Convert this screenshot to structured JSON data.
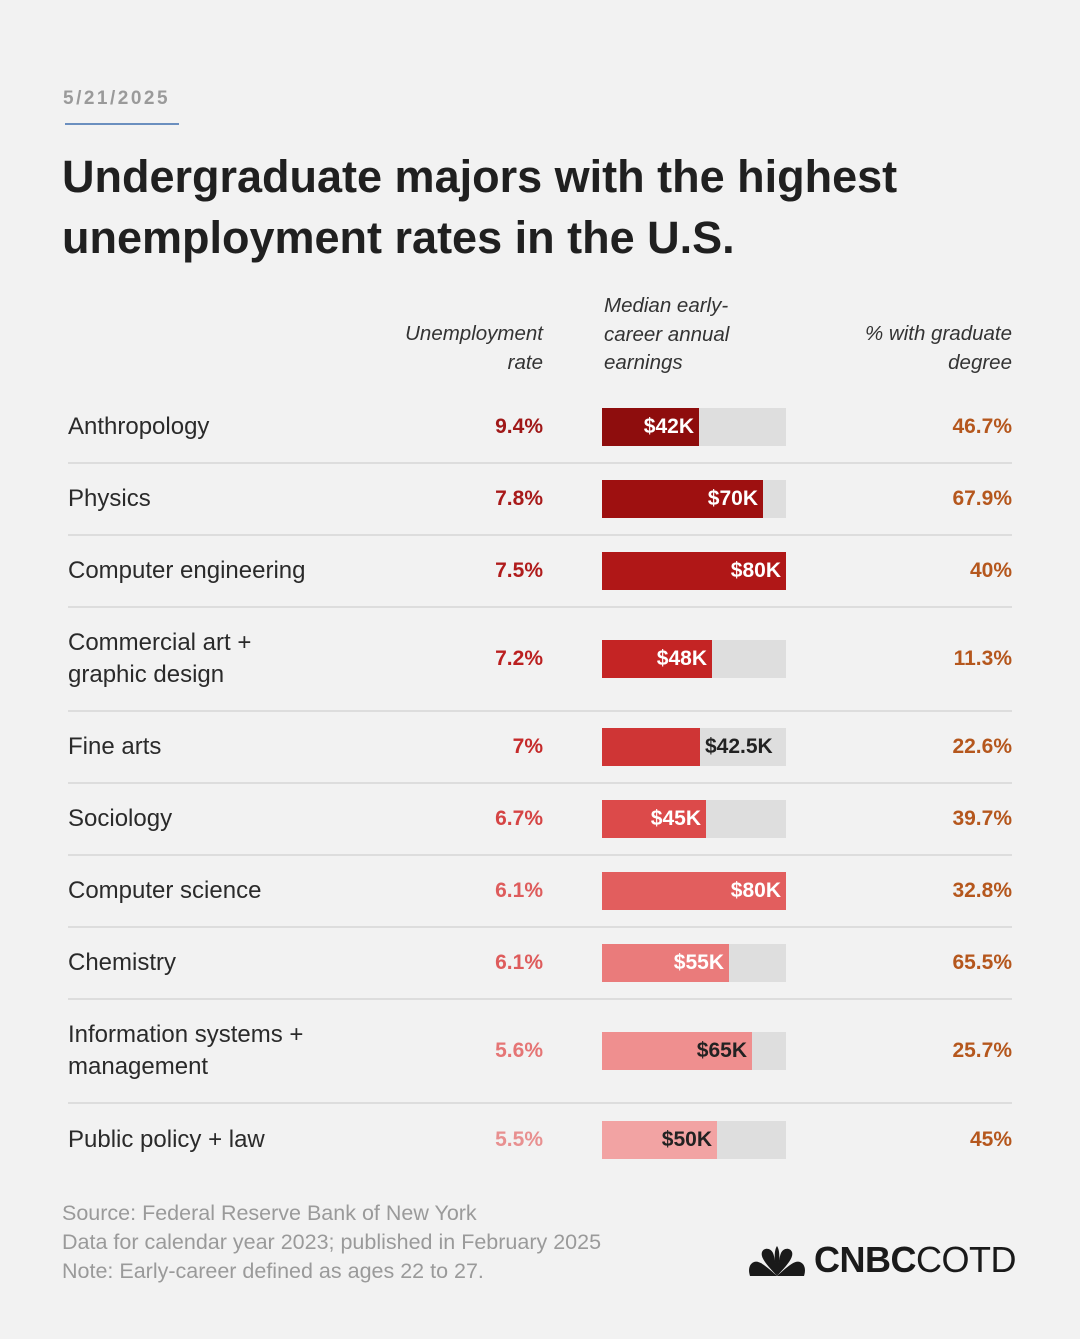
{
  "header": {
    "date": "5/21/2025",
    "title": "Undergraduate majors with the highest unemployment rates in the U.S."
  },
  "columns": {
    "unemployment": [
      "Unemployment",
      "rate"
    ],
    "earnings": [
      "Median early-",
      "career annual",
      "earnings"
    ],
    "graduate": [
      "% with graduate",
      "degree"
    ]
  },
  "chart_data": {
    "type": "table",
    "title": "Undergraduate majors with the highest unemployment rates in the U.S.",
    "columns": [
      "Unemployment rate",
      "Median early-career annual earnings",
      "% with graduate degree"
    ],
    "earnings_scale_max": 80000,
    "rows": [
      {
        "major": [
          "Anthropology"
        ],
        "unemployment": "9.4%",
        "earnings_label": "$42K",
        "earnings_value": 42000,
        "graduate": "46.7%",
        "color": "#8e0d0d",
        "unemp_color": "#a01818",
        "label_inside": true
      },
      {
        "major": [
          "Physics"
        ],
        "unemployment": "7.8%",
        "earnings_label": "$70K",
        "earnings_value": 70000,
        "graduate": "67.9%",
        "color": "#9e1010",
        "unemp_color": "#a81a1a",
        "label_inside": true
      },
      {
        "major": [
          "Computer engineering"
        ],
        "unemployment": "7.5%",
        "earnings_label": "$80K",
        "earnings_value": 80000,
        "graduate": "40%",
        "color": "#b01717",
        "unemp_color": "#b01c1c",
        "label_inside": true
      },
      {
        "major": [
          "Commercial art +",
          "graphic design"
        ],
        "unemployment": "7.2%",
        "earnings_label": "$48K",
        "earnings_value": 48000,
        "graduate": "11.3%",
        "color": "#c42424",
        "unemp_color": "#bb2020",
        "label_inside": true
      },
      {
        "major": [
          "Fine arts"
        ],
        "unemployment": "7%",
        "earnings_label": "$42.5K",
        "earnings_value": 42500,
        "graduate": "22.6%",
        "color": "#cf3535",
        "unemp_color": "#c52a2a",
        "label_inside": false
      },
      {
        "major": [
          "Sociology"
        ],
        "unemployment": "6.7%",
        "earnings_label": "$45K",
        "earnings_value": 45000,
        "graduate": "39.7%",
        "color": "#dc4a4a",
        "unemp_color": "#d54444",
        "label_inside": true
      },
      {
        "major": [
          "Computer science"
        ],
        "unemployment": "6.1%",
        "earnings_label": "$80K",
        "earnings_value": 80000,
        "graduate": "32.8%",
        "color": "#e25e5e",
        "unemp_color": "#de5c5c",
        "label_inside": true
      },
      {
        "major": [
          "Chemistry"
        ],
        "unemployment": "6.1%",
        "earnings_label": "$55K",
        "earnings_value": 55000,
        "graduate": "65.5%",
        "color": "#ea7b7b",
        "unemp_color": "#de5c5c",
        "label_inside": true
      },
      {
        "major": [
          "Information systems +",
          "management"
        ],
        "unemployment": "5.6%",
        "earnings_label": "$65K",
        "earnings_value": 65000,
        "graduate": "25.7%",
        "color": "#ef8f8f",
        "unemp_color": "#e57575",
        "label_inside": true,
        "label_dark": true
      },
      {
        "major": [
          "Public policy + law"
        ],
        "unemployment": "5.5%",
        "earnings_label": "$50K",
        "earnings_value": 50000,
        "graduate": "45%",
        "color": "#f2a3a3",
        "unemp_color": "#e89090",
        "label_inside": true,
        "label_dark": true
      }
    ]
  },
  "footer": {
    "lines": [
      "Source: Federal Reserve Bank of New York",
      "Data for calendar year 2023; published in February 2025",
      "Note: Early-career defined as ages 22 to 27."
    ]
  },
  "logo": {
    "cnbc": "CNBC",
    "cotd": "COTD",
    "icon": "peacock-icon"
  }
}
